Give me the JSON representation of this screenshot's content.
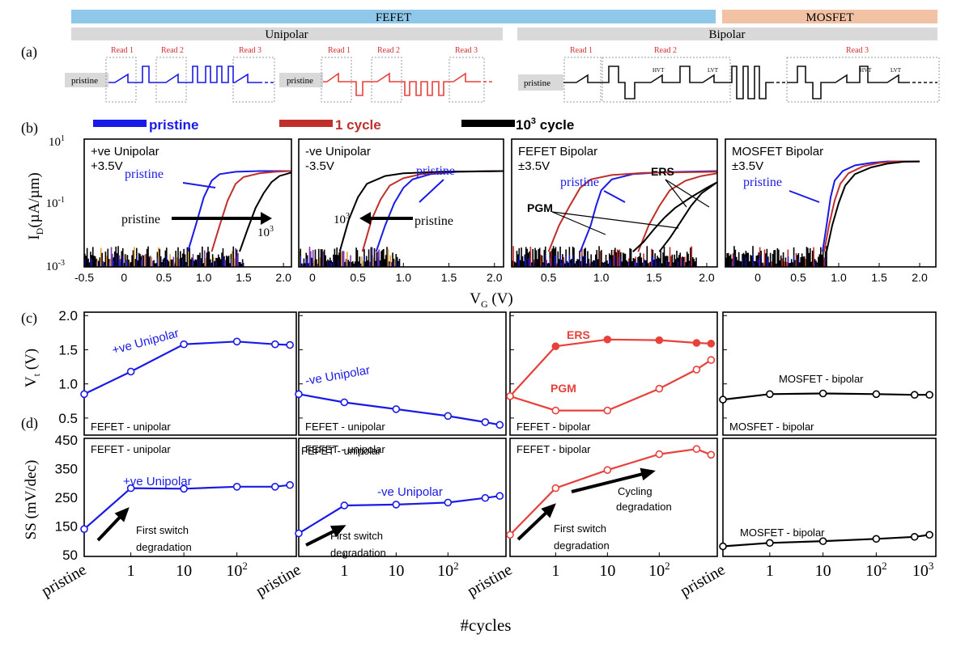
{
  "colors": {
    "pristine": "#1a1ae6",
    "cycle1": "#c0302b",
    "cycle1000": "#000000",
    "bipolar_red": "#e8403a",
    "fefet_bar": "#8fc8e8",
    "mosfet_bar": "#f2c2a4",
    "unibar": "#d9d9d9",
    "purple": "#7a3aa8",
    "gold": "#e0a030"
  },
  "header": {
    "fefet": "FEFET",
    "mosfet": "MOSFET",
    "unipolar": "Unipolar",
    "bipolar": "Bipolar"
  },
  "panel_labels": {
    "a": "(a)",
    "b": "(b)",
    "c": "(c)",
    "d": "(d)"
  },
  "waveforms": {
    "pristine": "pristine",
    "read1": "Read 1",
    "read2": "Read 2",
    "read3": "Read 3",
    "hvt": "HVT",
    "lvt": "LVT"
  },
  "legend": {
    "pristine": "pristine",
    "cycle1": "1 cycle",
    "cycle1000_base": "10",
    "cycle1000_sup": "3",
    "cycle1000_tail": " cycle"
  },
  "chart_data": [
    {
      "type": "line",
      "name": "Id-Vg",
      "ylabel": "I_D (µA/µm)",
      "xlabel": "V_G (V)",
      "yscale": "log",
      "ylim": [
        0.001,
        10
      ],
      "y_ticks": [
        "10^1",
        "10^-1",
        "10^-3"
      ],
      "panels": [
        {
          "title": "+ve Unipolar",
          "subtitle": "+3.5V",
          "x_ticks": [
            "-0.5",
            "0",
            "0.5",
            "1.0",
            "1.5",
            "2.0"
          ],
          "xlim": [
            -0.5,
            2.1
          ],
          "annotations": [
            "pristine",
            "pristine",
            "10^3"
          ],
          "curves": [
            {
              "series": "pristine",
              "x": [
                0.8,
                0.9,
                1.0,
                1.1,
                1.2,
                1.4,
                1.7,
                2.1
              ],
              "y": [
                0.003,
                0.02,
                0.15,
                0.5,
                0.8,
                0.95,
                1.0,
                1.0
              ]
            },
            {
              "series": "1 cycle",
              "x": [
                1.1,
                1.2,
                1.3,
                1.4,
                1.5,
                1.7,
                1.9,
                2.1
              ],
              "y": [
                0.003,
                0.02,
                0.12,
                0.4,
                0.65,
                0.85,
                0.95,
                1.0
              ]
            },
            {
              "series": "10^3 cycle",
              "x": [
                1.45,
                1.55,
                1.65,
                1.75,
                1.85,
                1.95,
                2.1
              ],
              "y": [
                0.003,
                0.015,
                0.07,
                0.2,
                0.45,
                0.7,
                0.9
              ]
            }
          ]
        },
        {
          "title": "-ve Unipolar",
          "subtitle": "-3.5V",
          "x_ticks": [
            "0",
            "0.5",
            "1.0",
            "1.5",
            "2.0"
          ],
          "xlim": [
            -0.15,
            2.1
          ],
          "annotations": [
            "pristine",
            "pristine",
            "10^3"
          ],
          "curves": [
            {
              "series": "pristine",
              "x": [
                0.7,
                0.8,
                0.9,
                1.0,
                1.1,
                1.3,
                1.6,
                2.1
              ],
              "y": [
                0.003,
                0.02,
                0.1,
                0.3,
                0.55,
                0.8,
                0.95,
                1.0
              ]
            },
            {
              "series": "1 cycle",
              "x": [
                0.55,
                0.65,
                0.75,
                0.85,
                1.0,
                1.2,
                1.5,
                2.1
              ],
              "y": [
                0.003,
                0.03,
                0.13,
                0.35,
                0.6,
                0.8,
                0.95,
                1.0
              ]
            },
            {
              "series": "10^3 cycle",
              "x": [
                0.3,
                0.4,
                0.5,
                0.6,
                0.8,
                1.0,
                1.4,
                2.1
              ],
              "y": [
                0.003,
                0.03,
                0.15,
                0.4,
                0.7,
                0.85,
                0.95,
                1.0
              ]
            }
          ]
        },
        {
          "title": "FEFET Bipolar",
          "subtitle": "±3.5V",
          "x_ticks": [
            "0.5",
            "1.0",
            "1.5",
            "2.0"
          ],
          "xlim": [
            0.15,
            2.1
          ],
          "annotations": [
            "pristine",
            "ERS",
            "PGM"
          ],
          "curves": [
            {
              "series": "pristine",
              "x": [
                0.8,
                0.9,
                0.95,
                1.0,
                1.1,
                1.3,
                1.6,
                2.1
              ],
              "y": [
                0.003,
                0.02,
                0.08,
                0.25,
                0.55,
                0.8,
                0.92,
                1.0
              ]
            },
            {
              "series": "1 cycle",
              "x": [
                0.5,
                0.6,
                0.7,
                0.8,
                0.9,
                1.1,
                1.4,
                2.1
              ],
              "y": [
                0.003,
                0.02,
                0.08,
                0.3,
                0.55,
                0.75,
                0.88,
                0.95
              ]
            },
            {
              "series": "1 cycle",
              "x": [
                1.35,
                1.45,
                1.55,
                1.65,
                1.8,
                1.95,
                2.1
              ],
              "y": [
                0.003,
                0.02,
                0.08,
                0.25,
                0.5,
                0.7,
                0.85
              ]
            },
            {
              "series": "10^3 cycle",
              "x": [
                1.3,
                1.4,
                1.5,
                1.6,
                1.7,
                1.85,
                2.0,
                2.1
              ],
              "y": [
                0.003,
                0.006,
                0.015,
                0.035,
                0.07,
                0.15,
                0.3,
                0.45
              ]
            },
            {
              "series": "10^3 cycle",
              "x": [
                1.55,
                1.65,
                1.75,
                1.85,
                1.95,
                2.1
              ],
              "y": [
                0.003,
                0.008,
                0.025,
                0.08,
                0.2,
                0.45
              ]
            }
          ]
        },
        {
          "title": "MOSFET Bipolar",
          "subtitle": "±3.5V",
          "x_ticks": [
            "0",
            "0.5",
            "1.0",
            "1.5",
            "2.0"
          ],
          "xlim": [
            -0.4,
            2.2
          ],
          "annotations": [
            "pristine"
          ],
          "curves": [
            {
              "series": "pristine",
              "x": [
                0.8,
                0.85,
                0.9,
                0.95,
                1.05,
                1.2,
                1.4,
                1.6,
                2.0
              ],
              "y": [
                0.003,
                0.02,
                0.15,
                0.5,
                1.0,
                1.5,
                1.8,
                2.0,
                2.0
              ]
            },
            {
              "series": "1 cycle",
              "x": [
                0.82,
                0.88,
                0.95,
                1.02,
                1.12,
                1.3,
                1.5,
                1.7,
                2.0
              ],
              "y": [
                0.003,
                0.02,
                0.12,
                0.4,
                0.85,
                1.4,
                1.8,
                2.0,
                2.0
              ]
            },
            {
              "series": "10^3 cycle",
              "x": [
                0.85,
                0.92,
                1.0,
                1.08,
                1.2,
                1.4,
                1.6,
                1.8,
                2.0
              ],
              "y": [
                0.003,
                0.02,
                0.1,
                0.35,
                0.8,
                1.3,
                1.7,
                1.95,
                2.0
              ]
            }
          ]
        }
      ]
    },
    {
      "type": "line",
      "name": "Vt vs cycles",
      "ylabel": "V_t (V)",
      "ylim": [
        0.3,
        2.0
      ],
      "y_ticks": [
        "2.0",
        "1.5",
        "1.0",
        "0.5"
      ],
      "x_ticks": [
        "pristine",
        "1",
        "10",
        "10^2"
      ],
      "panels": [
        {
          "label": "FEFET - unipolar",
          "annotation": "+ve Unipolar",
          "series": [
            {
              "name": "+ve Unipolar",
              "x": [
                "pristine",
                1,
                10,
                100,
                500,
                1000
              ],
              "y": [
                0.85,
                1.18,
                1.58,
                1.62,
                1.58,
                1.57
              ]
            }
          ]
        },
        {
          "label": "FEFET - unipolar",
          "annotation": "-ve Unipolar",
          "series": [
            {
              "name": "-ve Unipolar",
              "x": [
                "pristine",
                1,
                10,
                100,
                500,
                1000
              ],
              "y": [
                0.85,
                0.73,
                0.63,
                0.53,
                0.44,
                0.4
              ]
            }
          ]
        },
        {
          "label": "FEFET - bipolar",
          "annotations": [
            "ERS",
            "PGM"
          ],
          "series": [
            {
              "name": "ERS",
              "x": [
                "pristine",
                1,
                10,
                100,
                500,
                1000
              ],
              "y": [
                0.82,
                1.55,
                1.65,
                1.64,
                1.6,
                1.59
              ]
            },
            {
              "name": "PGM",
              "x": [
                "pristine",
                1,
                10,
                100,
                500,
                1000
              ],
              "y": [
                0.82,
                0.61,
                0.61,
                0.93,
                1.21,
                1.35
              ]
            }
          ]
        },
        {
          "label": "MOSFET - bipolar",
          "series": [
            {
              "name": "MOSFET - bipolar",
              "x": [
                "pristine",
                1,
                10,
                100,
                500,
                1000
              ],
              "y": [
                0.77,
                0.85,
                0.86,
                0.85,
                0.84,
                0.84
              ]
            }
          ]
        }
      ]
    },
    {
      "type": "line",
      "name": "SS vs cycles",
      "ylabel": "SS (mV/dec)",
      "xlabel": "#cycles",
      "ylim": [
        50,
        450
      ],
      "y_ticks": [
        "450",
        "350",
        "250",
        "150",
        "50"
      ],
      "panels": [
        {
          "label": "FEFET - unipolar",
          "annotations": [
            "+ve Unipolar",
            "First switch degradation"
          ],
          "x_ticks": [
            "pristine",
            "1",
            "10",
            "10^2"
          ],
          "series": [
            {
              "name": "+ve Unipolar",
              "x": [
                "pristine",
                1,
                10,
                100,
                500,
                1000
              ],
              "y": [
                140,
                282,
                280,
                287,
                287,
                293
              ]
            }
          ]
        },
        {
          "label": "FEFET - unipolar",
          "annotations": [
            "-ve Unipolar",
            "First switch degradation"
          ],
          "x_ticks": [
            "pristine",
            "1",
            "10",
            "10^2"
          ],
          "series": [
            {
              "name": "-ve Unipolar",
              "x": [
                "pristine",
                1,
                10,
                100,
                500,
                1000
              ],
              "y": [
                125,
                222,
                225,
                232,
                248,
                255
              ]
            }
          ]
        },
        {
          "label": "FEFET - bipolar",
          "annotations": [
            "First switch degradation",
            "Cycling degradation"
          ],
          "x_ticks": [
            "pristine",
            "1",
            "10",
            "10^2"
          ],
          "series": [
            {
              "name": "FEFET - bipolar",
              "x": [
                "pristine",
                1,
                10,
                100,
                500,
                1000
              ],
              "y": [
                120,
                282,
                345,
                400,
                418,
                398
              ]
            }
          ]
        },
        {
          "label": "MOSFET - bipolar",
          "annotations": [
            "MOSFET - bipolar"
          ],
          "x_ticks": [
            "pristine",
            "1",
            "10",
            "10^2",
            "10^3"
          ],
          "series": [
            {
              "name": "MOSFET - bipolar",
              "x": [
                "pristine",
                1,
                10,
                100,
                500,
                1000
              ],
              "y": [
                80,
                92,
                98,
                106,
                113,
                120
              ]
            }
          ]
        }
      ]
    }
  ],
  "text": {
    "b_p1_t": "+ve Unipolar",
    "b_p1_s": "+3.5V",
    "b_p2_t": "-ve Unipolar",
    "b_p2_s": "-3.5V",
    "b_p3_t": "FEFET Bipolar",
    "b_p3_s": "±3.5V",
    "b_p4_t": "MOSFET Bipolar",
    "b_p4_s": "±3.5V",
    "pristine": "pristine",
    "ten3": "10",
    "sup3": "3",
    "ers": "ERS",
    "pgm": "PGM",
    "ylabel_b_main": "I",
    "ylabel_b_sub": "D",
    "ylabel_b_rest": "(µA/µm)",
    "xlabel_b_main": "V",
    "xlabel_b_sub": "G",
    "xlabel_b_rest": " (V)",
    "ylabel_c_main": "V",
    "ylabel_c_sub": "t",
    "ylabel_c_rest": " (V)",
    "ylabel_d": "SS (mV/dec)",
    "xlabel_d": "#cycles",
    "fefet_unipolar": "FEFET - unipolar",
    "fefet_bipolar": "FEFET - bipolar",
    "mosfet_bipolar": "MOSFET - bipolar",
    "pos_unipolar": "+ve Unipolar",
    "neg_unipolar": "-ve Unipolar",
    "first_switch_1": "First switch",
    "first_switch_2": "degradation",
    "cycling_1": "Cycling",
    "cycling_2": "degradation",
    "ytick_b_10": "10",
    "ytick_b_10_sup": "1",
    "ytick_b_m1_sup": "-1",
    "ytick_b_m3_sup": "-3",
    "c_yticks": [
      "2.0",
      "1.5",
      "1.0",
      "0.5"
    ],
    "d_yticks": [
      "450",
      "350",
      "250",
      "150",
      "50"
    ],
    "b_xt1": [
      "-0.5",
      "0",
      "0.5",
      "1.0",
      "1.5",
      "2.0"
    ],
    "b_xt2": [
      "0",
      "0.5",
      "1.0",
      "1.5",
      "2.0"
    ],
    "b_xt3": [
      "0.5",
      "1.0",
      "1.5",
      "2.0"
    ],
    "b_xt4": [
      "0",
      "0.5",
      "1.0",
      "1.5",
      "2.0"
    ],
    "cyc_pristine": "pristine",
    "cyc_1": "1",
    "cyc_10": "10",
    "cyc_10_2_base": "10",
    "cyc_10_2_sup": "2",
    "cyc_10_3_sup": "3"
  }
}
